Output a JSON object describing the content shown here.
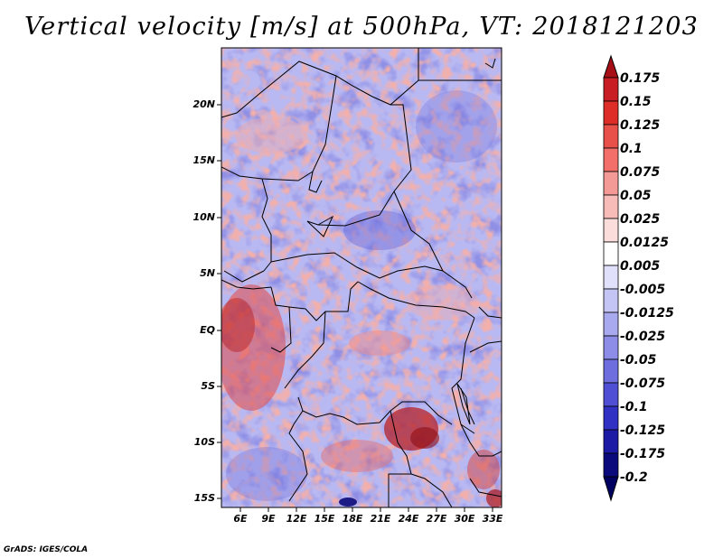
{
  "title": "Vertical velocity [m/s] at 500hPa, VT: 2018121203",
  "footer": "GrADS: IGES/COLA",
  "map": {
    "lon_range": [
      4,
      34
    ],
    "lat_range": [
      -16,
      25
    ],
    "lat_ticks": [
      "20N",
      "15N",
      "10N",
      "5N",
      "EQ",
      "5S",
      "10S",
      "15S"
    ],
    "lon_ticks": [
      "6E",
      "9E",
      "12E",
      "15E",
      "18E",
      "21E",
      "24E",
      "27E",
      "30E",
      "33E"
    ]
  },
  "colorbar": {
    "labels": [
      "0.175",
      "0.15",
      "0.125",
      "0.1",
      "0.075",
      "0.05",
      "0.025",
      "0.0125",
      "0.005",
      "-0.005",
      "-0.0125",
      "-0.025",
      "-0.05",
      "-0.075",
      "-0.1",
      "-0.125",
      "-0.175",
      "-0.2"
    ],
    "colors": [
      "#a50f15",
      "#c81d22",
      "#de2d26",
      "#e8504a",
      "#f26f6a",
      "#f49a96",
      "#f7bcb8",
      "#fbdedb",
      "#ffffff",
      "#e0e0fb",
      "#c5c5f5",
      "#a9a9ef",
      "#8d8de8",
      "#6e6edf",
      "#4f4fd5",
      "#3131c4",
      "#1b1ba6",
      "#0a0a7d",
      "#000060"
    ]
  }
}
